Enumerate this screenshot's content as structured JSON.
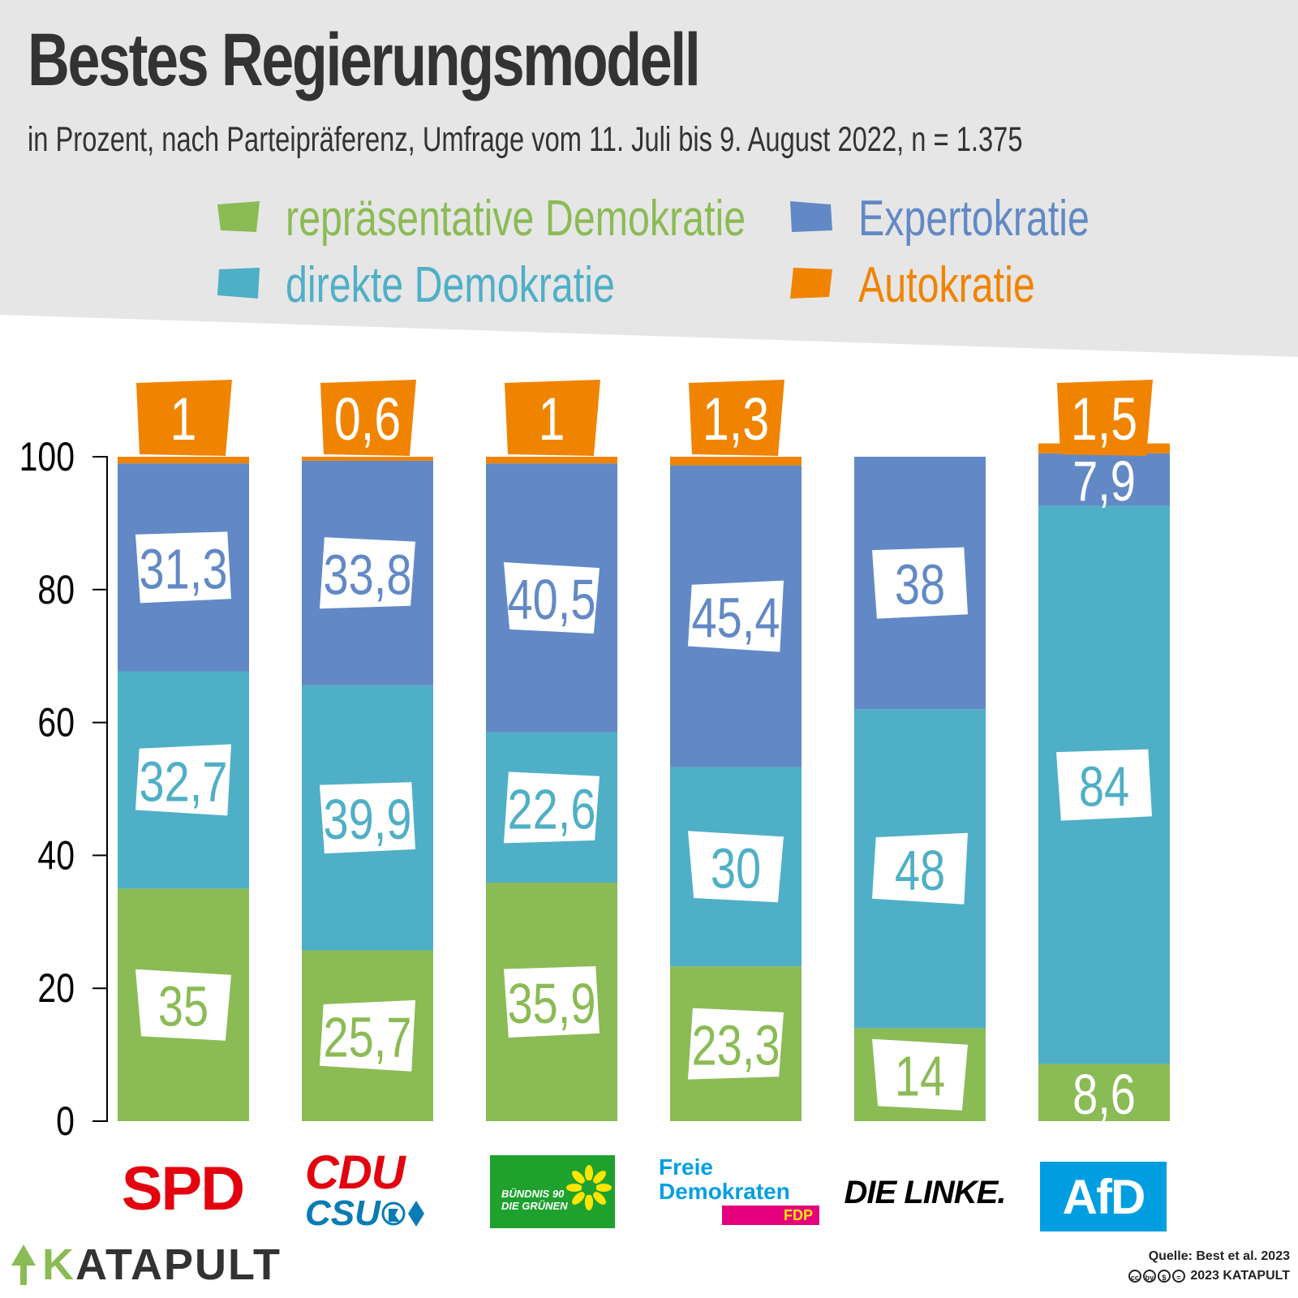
{
  "title": "Bestes Regierungsmodell",
  "subtitle": "in Prozent, nach Parteipräferenz, Umfrage vom 11. Juli bis 9. August 2022, n = 1.375",
  "colors": {
    "repraesentativ": "#8bbb55",
    "direkt": "#4fafc6",
    "experto": "#6289c5",
    "auto": "#f08400",
    "header_bg": "#e6e6e6",
    "axis": "#000000"
  },
  "legend": [
    {
      "label": "repräsentative Demokratie",
      "color": "#8bbb55"
    },
    {
      "label": "direkte Demokratie",
      "color": "#4fafc6"
    },
    {
      "label": "Expertokratie",
      "color": "#6289c5"
    },
    {
      "label": "Autokratie",
      "color": "#f08400"
    }
  ],
  "chart_data": {
    "type": "bar",
    "stacked": true,
    "title": "Bestes Regierungsmodell",
    "categories": [
      "SPD",
      "CDU/CSU",
      "Bündnis 90 / Die Grünen",
      "FDP",
      "Die Linke",
      "AfD"
    ],
    "series": [
      {
        "name": "repräsentative Demokratie",
        "values": [
          35,
          25.7,
          35.9,
          23.3,
          14,
          8.6
        ],
        "labels": [
          "35",
          "25,7",
          "35,9",
          "23,3",
          "14",
          "8,6"
        ]
      },
      {
        "name": "direkte Demokratie",
        "values": [
          32.7,
          39.9,
          22.6,
          30,
          48,
          84
        ],
        "labels": [
          "32,7",
          "39,9",
          "22,6",
          "30",
          "48",
          "84"
        ]
      },
      {
        "name": "Expertokratie",
        "values": [
          31.3,
          33.8,
          40.5,
          45.4,
          38,
          7.9
        ],
        "labels": [
          "31,3",
          "33,8",
          "40,5",
          "45,4",
          "38",
          "7,9"
        ]
      },
      {
        "name": "Autokratie",
        "values": [
          1,
          0.6,
          1,
          1.3,
          0,
          1.5
        ],
        "labels": [
          "1",
          "0,6",
          "1",
          "1,3",
          "",
          "1,5"
        ]
      }
    ],
    "ylim": [
      0,
      100
    ],
    "yticks": [
      0,
      20,
      40,
      60,
      80,
      100
    ],
    "ytick_labels": [
      "0",
      "20",
      "40",
      "60",
      "80",
      "100"
    ],
    "xlabel": "",
    "ylabel": ""
  },
  "parties": {
    "spd": "SPD",
    "cdu": "CDU",
    "csu": "CSU",
    "gruene_line1": "BÜNDNIS 90",
    "gruene_line2": "DIE GRÜNEN",
    "fdp_line1": "Freie",
    "fdp_line2": "Demokraten",
    "fdp_tag": "FDP",
    "linke": "DIE LINKE.",
    "afd": "AfD"
  },
  "footer": {
    "brand_initial": "K",
    "brand_rest": "ATAPULT",
    "source": "Quelle: Best et al. 2023",
    "copyright": "2023 KATAPULT",
    "cc_icons": [
      "cc",
      "by",
      "$",
      "="
    ]
  }
}
